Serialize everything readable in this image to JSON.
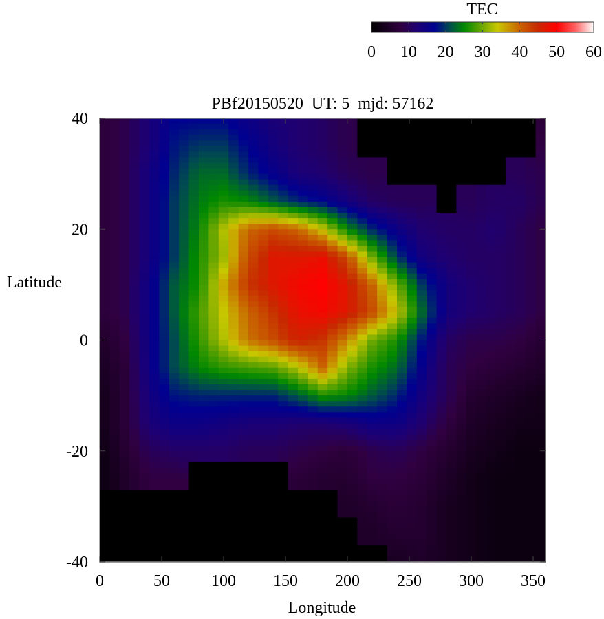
{
  "chart_data": {
    "type": "heatmap",
    "title": "PBf20150520  UT: 5  mjd: 57162",
    "xlabel": "Longitude",
    "ylabel": "Latitude",
    "xlim": [
      0,
      360
    ],
    "ylim": [
      -40,
      40
    ],
    "xticks": [
      "0",
      "50",
      "100",
      "150",
      "200",
      "250",
      "300",
      "350"
    ],
    "yticks": [
      "-40",
      "-20",
      "0",
      "20",
      "40"
    ],
    "grid": false,
    "colorbar": {
      "label": "TEC",
      "range": [
        0,
        60
      ],
      "ticks": [
        "0",
        "10",
        "20",
        "30",
        "40",
        "50",
        "60"
      ],
      "placement": "top-right",
      "colormap": [
        [
          0,
          "#000000"
        ],
        [
          8,
          "#300040"
        ],
        [
          12,
          "#200070"
        ],
        [
          17,
          "#000090"
        ],
        [
          21,
          "#004a50"
        ],
        [
          25,
          "#008800"
        ],
        [
          30,
          "#70a800"
        ],
        [
          34,
          "#c8c800"
        ],
        [
          40,
          "#c86400"
        ],
        [
          45,
          "#c82800"
        ],
        [
          50,
          "#ff0000"
        ],
        [
          55,
          "#ff6060"
        ],
        [
          60,
          "#ffffff"
        ]
      ]
    },
    "no_data_color": "#000000",
    "lon": [
      0,
      20,
      40,
      60,
      80,
      100,
      120,
      140,
      160,
      180,
      200,
      220,
      240,
      260,
      280,
      300,
      320,
      340,
      360
    ],
    "lat": [
      40,
      35,
      30,
      25,
      20,
      15,
      10,
      5,
      0,
      -5,
      -10,
      -15,
      -20,
      -25,
      -30,
      -35,
      -40
    ],
    "values": [
      [
        7,
        9,
        13,
        17,
        17,
        17,
        15,
        13,
        12,
        11,
        9,
        null,
        null,
        null,
        null,
        null,
        null,
        null,
        7
      ],
      [
        7,
        9,
        13,
        18,
        20,
        20,
        17,
        14,
        12,
        11,
        9,
        null,
        null,
        null,
        null,
        null,
        null,
        null,
        8
      ],
      [
        7,
        9,
        14,
        19,
        23,
        23,
        19,
        16,
        13,
        12,
        10,
        9,
        null,
        null,
        null,
        null,
        null,
        10,
        9
      ],
      [
        7,
        9,
        14,
        20,
        24,
        26,
        25,
        22,
        19,
        17,
        14,
        11,
        10,
        10,
        null,
        10,
        11,
        11,
        9
      ],
      [
        7,
        9,
        14,
        20,
        25,
        33,
        40,
        42,
        40,
        34,
        25,
        19,
        15,
        12,
        11,
        11,
        12,
        10,
        8
      ],
      [
        7,
        9,
        14,
        20,
        26,
        32,
        42,
        47,
        47,
        48,
        42,
        30,
        20,
        14,
        12,
        11,
        11,
        10,
        8
      ],
      [
        7,
        9,
        15,
        22,
        26,
        36,
        44,
        47,
        49,
        50,
        47,
        40,
        30,
        20,
        14,
        12,
        11,
        10,
        8
      ],
      [
        7,
        9,
        15,
        22,
        28,
        34,
        40,
        44,
        48,
        49,
        47,
        42,
        34,
        23,
        14,
        12,
        11,
        10,
        8
      ],
      [
        5,
        8,
        15,
        21,
        27,
        33,
        39,
        42,
        46,
        44,
        38,
        30,
        26,
        18,
        11,
        9,
        9,
        8,
        6
      ],
      [
        4,
        7,
        15,
        21,
        25,
        27,
        28,
        29,
        33,
        40,
        31,
        26,
        23,
        16,
        10,
        8,
        7,
        6,
        5
      ],
      [
        3,
        7,
        14,
        18,
        19,
        19,
        19,
        19,
        22,
        26,
        25,
        22,
        19,
        14,
        10,
        6,
        5,
        4,
        3
      ],
      [
        3,
        7,
        13,
        15,
        15,
        14,
        13,
        13,
        12,
        12,
        13,
        15,
        15,
        12,
        8,
        5,
        4,
        3,
        3
      ],
      [
        2,
        6,
        10,
        11,
        11,
        11,
        10,
        10,
        9,
        8,
        7,
        9,
        10,
        8,
        6,
        4,
        3,
        2,
        2
      ],
      [
        2,
        5,
        8,
        8,
        null,
        null,
        null,
        null,
        7,
        6,
        6,
        8,
        8,
        7,
        5,
        3,
        2,
        2,
        2
      ],
      [
        null,
        null,
        null,
        null,
        null,
        null,
        null,
        null,
        null,
        null,
        5,
        6,
        7,
        6,
        4,
        3,
        2,
        2,
        2
      ],
      [
        null,
        null,
        null,
        null,
        null,
        null,
        null,
        null,
        null,
        null,
        null,
        5,
        6,
        6,
        4,
        3,
        2,
        2,
        2
      ],
      [
        null,
        null,
        null,
        null,
        null,
        null,
        null,
        null,
        null,
        null,
        null,
        null,
        4,
        5,
        4,
        3,
        2,
        2,
        2
      ]
    ]
  }
}
